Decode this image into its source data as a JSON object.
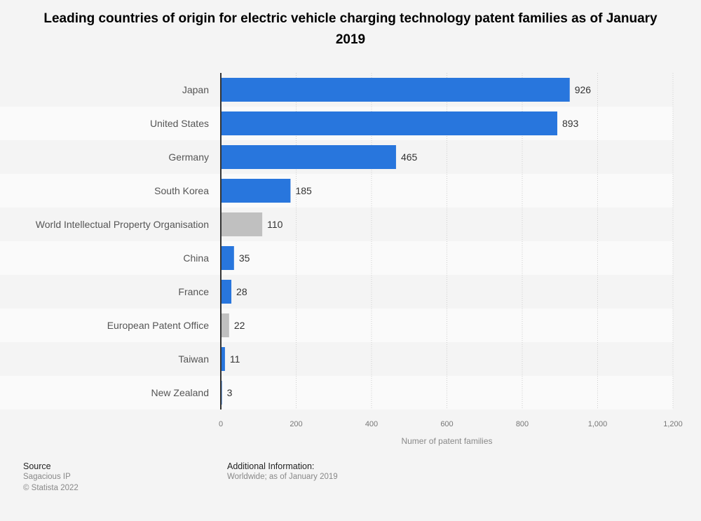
{
  "title": "Leading countries of origin for electric vehicle charging technology patent families as of January 2019",
  "chart_data": {
    "type": "bar",
    "orientation": "horizontal",
    "title": "Leading countries of origin for electric vehicle charging technology patent families as of January 2019",
    "categories": [
      "Japan",
      "United States",
      "Germany",
      "South Korea",
      "World Intellectual Property Organisation",
      "China",
      "France",
      "European Patent Office",
      "Taiwan",
      "New Zealand"
    ],
    "values": [
      926,
      893,
      465,
      185,
      110,
      35,
      28,
      22,
      11,
      3
    ],
    "highlight": [
      false,
      false,
      false,
      false,
      true,
      false,
      false,
      true,
      false,
      false
    ],
    "colors": {
      "default": "#2876dd",
      "highlight": "#c0c0c0"
    },
    "xlabel": "Numer of patent families",
    "ylabel": "",
    "xlim": [
      0,
      1200
    ],
    "xticks": [
      "0",
      "200",
      "400",
      "600",
      "800",
      "1,000",
      "1,200"
    ],
    "grid": true
  },
  "footer": {
    "source_label": "Source",
    "source_lines": [
      "Sagacious IP",
      "© Statista 2022"
    ],
    "info_label": "Additional Information:",
    "info_text": "Worldwide; as of January 2019"
  }
}
